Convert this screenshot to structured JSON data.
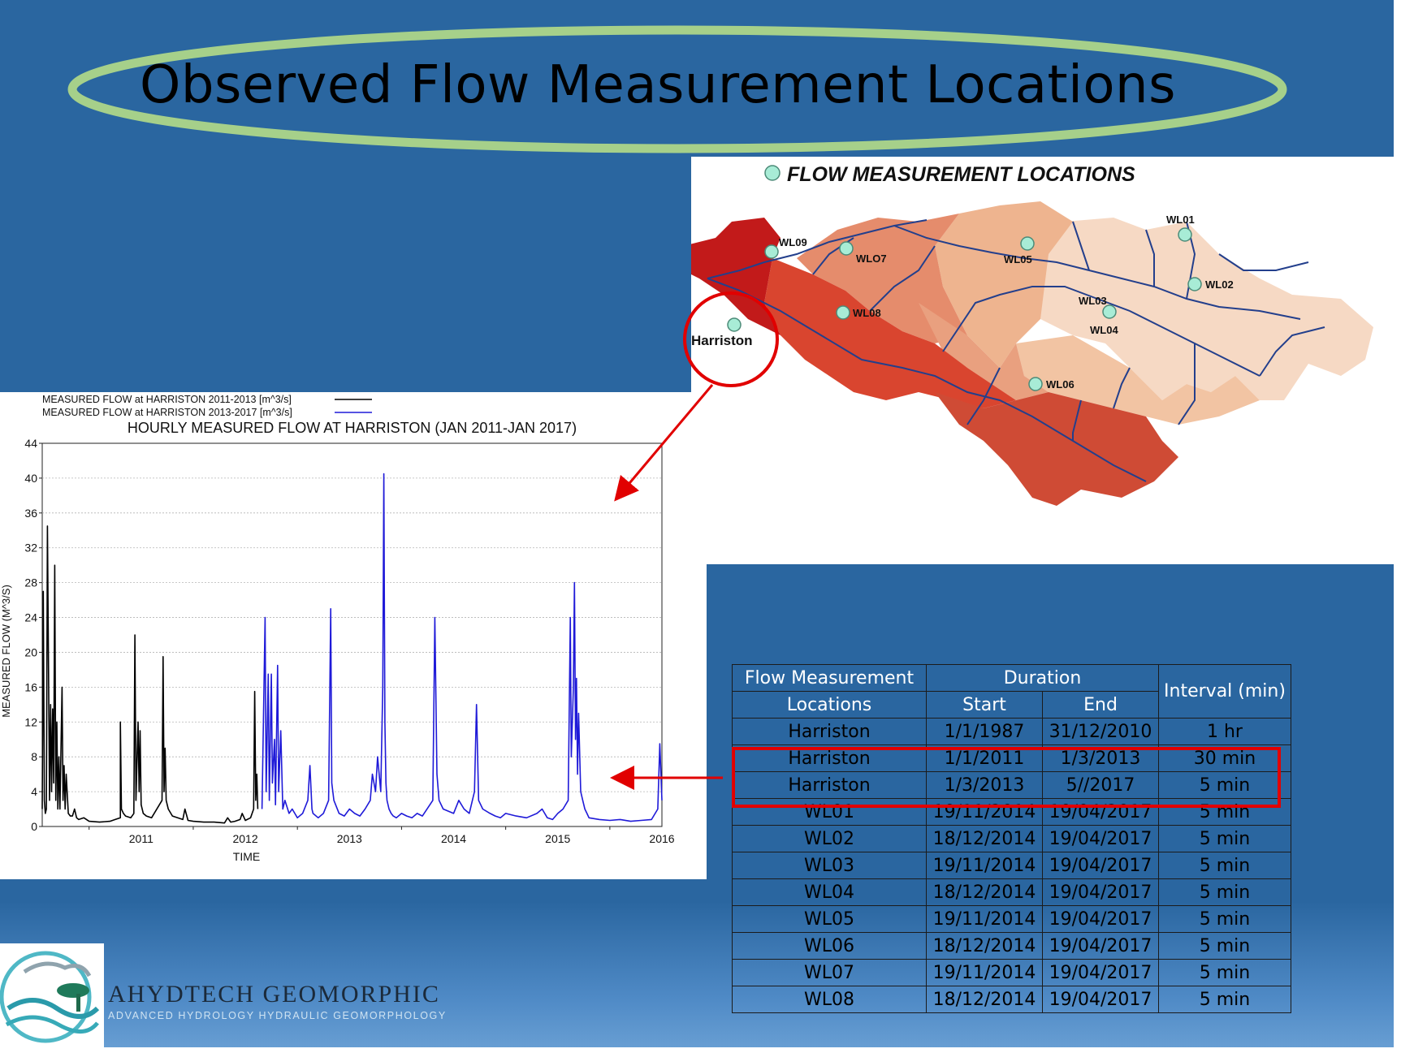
{
  "slide": {
    "title": "Observed Flow Measurement Locations"
  },
  "map": {
    "legend_title": "FLOW MEASUREMENT LOCATIONS",
    "stations": [
      "WL01",
      "WL02",
      "WL03",
      "WL04",
      "WL05",
      "WL06",
      "WLO7",
      "WL08",
      "WL09",
      "Harriston"
    ],
    "colors": {
      "station_fill": "#a8ecd6",
      "highlight": "#e10000"
    }
  },
  "chart_data": {
    "type": "line",
    "title": "HOURLY MEASURED FLOW AT HARRISTON (JAN 2011-JAN 2017)",
    "xlabel": "TIME",
    "ylabel": "MEASURED FLOW (M^3/S)",
    "ylim": [
      0,
      44
    ],
    "xlim": [
      2010.55,
      2016.5
    ],
    "y_ticks": [
      "0",
      "4",
      "8",
      "12",
      "16",
      "20",
      "24",
      "28",
      "32",
      "36",
      "40",
      "44"
    ],
    "x_ticks": [
      "2011",
      "2012",
      "2013",
      "2014",
      "2015",
      "2016"
    ],
    "grid": "y",
    "legend_position": "top-left",
    "series": [
      {
        "name": "MEASURED FLOW at HARRISTON 2011-2013 [m^3/s]",
        "color": "#000000",
        "x": [
          2010.55,
          2010.56,
          2010.57,
          2010.58,
          2010.59,
          2010.6,
          2010.62,
          2010.63,
          2010.64,
          2010.65,
          2010.66,
          2010.67,
          2010.68,
          2010.69,
          2010.7,
          2010.71,
          2010.72,
          2010.74,
          2010.75,
          2010.76,
          2010.77,
          2010.78,
          2010.8,
          2010.82,
          2010.84,
          2010.86,
          2010.88,
          2010.9,
          2010.95,
          2011.0,
          2011.1,
          2011.2,
          2011.25,
          2011.3,
          2011.3,
          2011.31,
          2011.33,
          2011.35,
          2011.4,
          2011.43,
          2011.44,
          2011.45,
          2011.47,
          2011.48,
          2011.49,
          2011.5,
          2011.52,
          2011.55,
          2011.6,
          2011.7,
          2011.71,
          2011.72,
          2011.73,
          2011.74,
          2011.76,
          2011.8,
          2011.85,
          2011.9,
          2011.92,
          2011.95,
          2012.0,
          2012.1,
          2012.2,
          2012.3,
          2012.33,
          2012.36,
          2012.4,
          2012.45,
          2012.47,
          2012.5,
          2012.55,
          2012.58,
          2012.59,
          2012.6,
          2012.61,
          2012.62
        ],
        "y": [
          2,
          27,
          3,
          1.5,
          2,
          34.5,
          3,
          14,
          4,
          13.5,
          5,
          30,
          3,
          12,
          2,
          8,
          2,
          16,
          3,
          7,
          2,
          6,
          1.5,
          1.2,
          1.2,
          2,
          1,
          0.8,
          1,
          0.6,
          0.5,
          0.6,
          0.8,
          1,
          12,
          2,
          1.5,
          1.2,
          1,
          1.5,
          22,
          3,
          12,
          4,
          11,
          2.5,
          1.5,
          1.2,
          1,
          3,
          19.5,
          4,
          9,
          3,
          2,
          1.2,
          1,
          0.8,
          2,
          0.7,
          0.6,
          0.5,
          0.5,
          0.4,
          1,
          0.5,
          0.6,
          0.8,
          1.5,
          0.7,
          1,
          2,
          15.5,
          3,
          6,
          2
        ]
      },
      {
        "name": "MEASURED FLOW at HARRISTON 2013-2017 [m^3/s]",
        "color": "#1f1ad8",
        "x": [
          2012.66,
          2012.69,
          2012.7,
          2012.72,
          2012.73,
          2012.75,
          2012.76,
          2012.78,
          2012.79,
          2012.81,
          2012.82,
          2012.84,
          2012.86,
          2012.88,
          2012.92,
          2012.95,
          2013.0,
          2013.05,
          2013.1,
          2013.12,
          2013.14,
          2013.15,
          2013.2,
          2013.25,
          2013.3,
          2013.32,
          2013.33,
          2013.35,
          2013.4,
          2013.45,
          2013.5,
          2013.55,
          2013.6,
          2013.65,
          2013.7,
          2013.72,
          2013.75,
          2013.77,
          2013.8,
          2013.82,
          2013.83,
          2013.84,
          2013.85,
          2013.86,
          2013.88,
          2013.9,
          2013.92,
          2013.95,
          2014.0,
          2014.05,
          2014.1,
          2014.15,
          2014.2,
          2014.3,
          2014.32,
          2014.34,
          2014.36,
          2014.4,
          2014.5,
          2014.55,
          2014.6,
          2014.65,
          2014.7,
          2014.72,
          2014.74,
          2014.78,
          2014.85,
          2014.9,
          2014.95,
          2015.0,
          2015.1,
          2015.2,
          2015.3,
          2015.35,
          2015.4,
          2015.45,
          2015.5,
          2015.55,
          2015.6,
          2015.62,
          2015.63,
          2015.64,
          2015.65,
          2015.66,
          2015.67,
          2015.68,
          2015.69,
          2015.7,
          2015.72,
          2015.74,
          2015.76,
          2015.78,
          2015.8,
          2015.9,
          2016.0,
          2016.1,
          2016.2,
          2016.3,
          2016.4,
          2016.46,
          2016.48,
          2016.5
        ],
        "y": [
          2,
          24,
          4,
          17.5,
          3,
          17.5,
          5,
          10,
          2.5,
          18.5,
          4,
          11,
          2,
          3,
          1.5,
          2,
          1,
          1.5,
          3,
          7,
          2,
          1.5,
          1,
          1.5,
          3,
          25,
          5,
          3,
          1.5,
          1.2,
          2,
          1.5,
          1.2,
          2,
          3,
          6,
          4,
          8,
          4,
          16,
          40.5,
          12,
          5,
          3,
          2,
          1.5,
          1.2,
          1,
          1.5,
          1.2,
          1,
          1.5,
          1.2,
          3,
          24,
          6,
          3,
          2,
          1.5,
          3,
          2,
          1.5,
          4,
          14,
          3,
          2,
          1.5,
          1.2,
          1,
          1.5,
          1.2,
          1,
          1.5,
          2,
          1,
          0.8,
          1.5,
          2,
          3,
          24,
          8,
          12,
          16,
          28,
          10,
          17,
          6,
          13,
          4,
          3,
          2,
          1.5,
          1,
          0.8,
          0.7,
          0.8,
          0.6,
          0.7,
          0.8,
          2,
          9.5,
          3
        ]
      }
    ]
  },
  "table": {
    "header": {
      "locations_line1": "Flow Measurement",
      "locations_line2": "Locations",
      "duration": "Duration",
      "start": "Start",
      "end": "End",
      "interval": "Interval (min)"
    },
    "rows": [
      [
        "Harriston",
        "1/1/1987",
        "31/12/2010",
        "1 hr"
      ],
      [
        "Harriston",
        "1/1/2011",
        "1/3/2013",
        "30 min"
      ],
      [
        "Harriston",
        "1/3/2013",
        "5//2017",
        "5 min"
      ],
      [
        "WL01",
        "19/11/2014",
        "19/04/2017",
        "5 min"
      ],
      [
        "WL02",
        "18/12/2014",
        "19/04/2017",
        "5 min"
      ],
      [
        "WL03",
        "19/11/2014",
        "19/04/2017",
        "5 min"
      ],
      [
        "WL04",
        "18/12/2014",
        "19/04/2017",
        "5 min"
      ],
      [
        "WL05",
        "19/11/2014",
        "19/04/2017",
        "5 min"
      ],
      [
        "WL06",
        "18/12/2014",
        "19/04/2017",
        "5 min"
      ],
      [
        "WL07",
        "19/11/2014",
        "19/04/2017",
        "5 min"
      ],
      [
        "WL08",
        "18/12/2014",
        "19/04/2017",
        "5 min"
      ]
    ]
  },
  "logo": {
    "name": "AHYDTECH GEOMORPHIC",
    "tagline": "ADVANCED HYDROLOGY HYDRAULIC GEOMORPHOLOGY"
  }
}
